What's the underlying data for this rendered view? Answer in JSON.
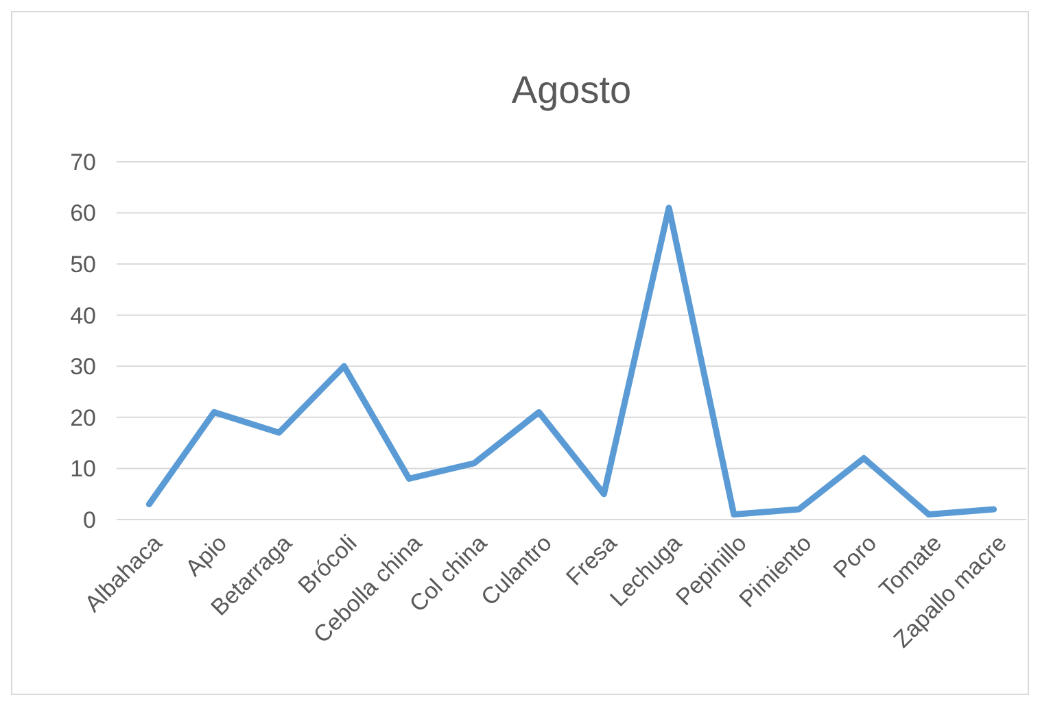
{
  "chart_data": {
    "type": "line",
    "title": "Agosto",
    "categories": [
      "Albahaca",
      "Apio",
      "Betarraga",
      "Brócoli",
      "Cebolla china",
      "Col china",
      "Culantro",
      "Fresa",
      "Lechuga",
      "Pepinillo",
      "Pimiento",
      "Poro",
      "Tomate",
      "Zapallo macre"
    ],
    "series": [
      {
        "color": "#5b9bd5",
        "values": [
          3,
          21,
          17,
          30,
          8,
          11,
          21,
          5,
          61,
          1,
          2,
          12,
          1,
          2
        ]
      }
    ],
    "ylim": [
      0,
      70
    ],
    "yticks": [
      0,
      10,
      20,
      30,
      40,
      50,
      60,
      70
    ],
    "grid": "y",
    "marker": "none",
    "line_style": "solid"
  }
}
